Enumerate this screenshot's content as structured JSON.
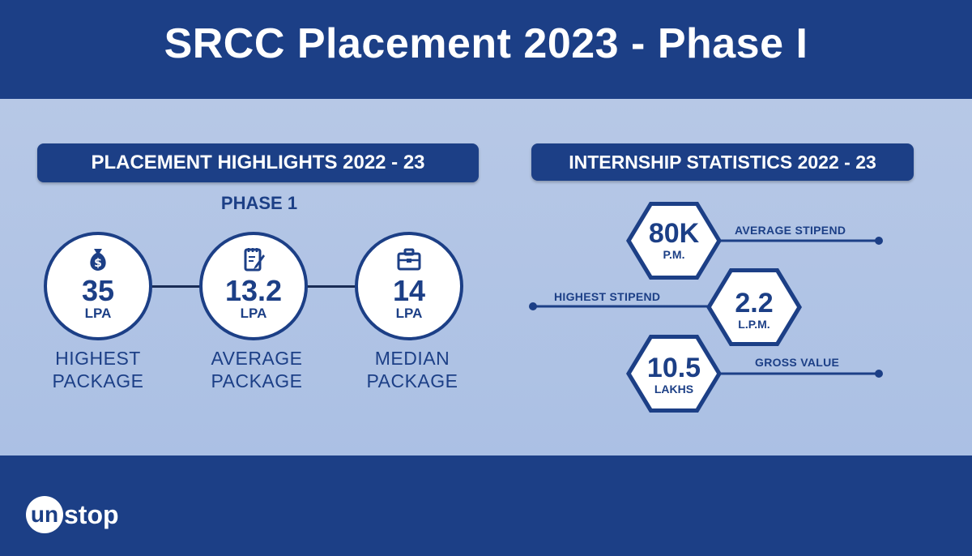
{
  "header": {
    "title": "SRCC Placement 2023 - Phase I"
  },
  "placement": {
    "heading": "PLACEMENT HIGHLIGHTS 2022 - 23",
    "phase": "PHASE 1",
    "stats": [
      {
        "value": "35",
        "unit": "LPA",
        "caption_line1": "HIGHEST",
        "caption_line2": "PACKAGE",
        "icon": "money-bag-icon"
      },
      {
        "value": "13.2",
        "unit": "LPA",
        "caption_line1": "AVERAGE",
        "caption_line2": "PACKAGE",
        "icon": "notepad-icon"
      },
      {
        "value": "14",
        "unit": "LPA",
        "caption_line1": "MEDIAN",
        "caption_line2": "PACKAGE",
        "icon": "briefcase-icon"
      }
    ]
  },
  "internship": {
    "heading": "INTERNSHIP STATISTICS 2022 - 23",
    "stats": [
      {
        "value": "80K",
        "unit": "P.M.",
        "label": "AVERAGE STIPEND"
      },
      {
        "value": "2.2",
        "unit": "L.P.M.",
        "label": "HIGHEST STIPEND"
      },
      {
        "value": "10.5",
        "unit": "LAKHS",
        "label": "GROSS VALUE"
      }
    ]
  },
  "footer": {
    "logo_badge": "un",
    "logo_text": "stop"
  },
  "colors": {
    "navy": "#1c3f86",
    "panel": "#b0c3e5",
    "white": "#ffffff"
  }
}
